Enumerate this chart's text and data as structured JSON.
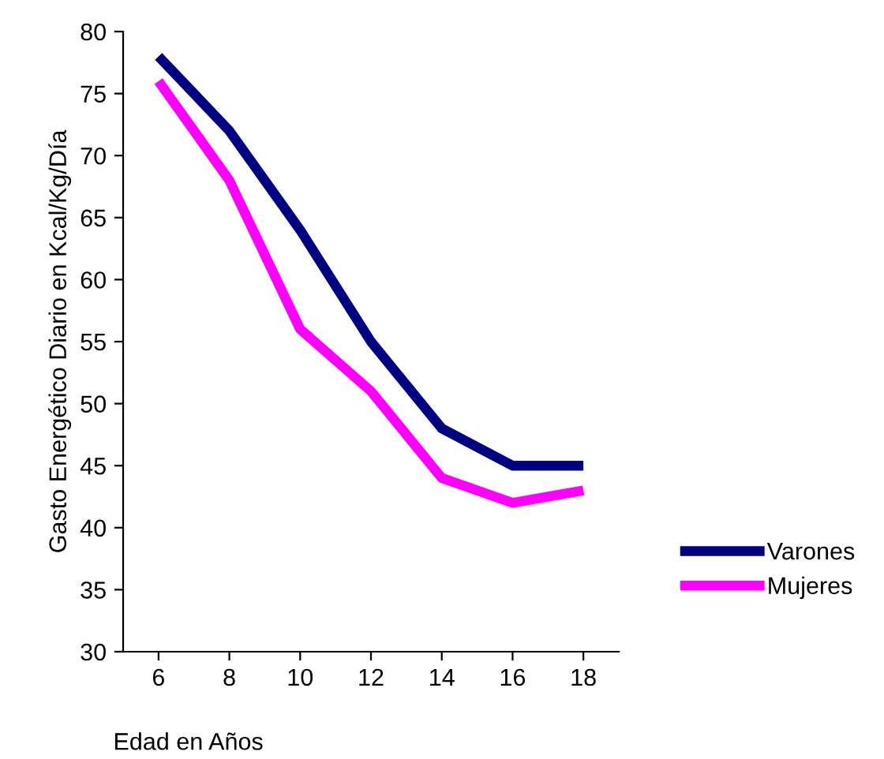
{
  "chart_data": {
    "type": "line",
    "xlabel": "Edad en Años",
    "ylabel": "Gasto Energético Diario en Kcal/Kg/Día",
    "x": [
      6,
      8,
      10,
      12,
      14,
      16,
      18
    ],
    "series": [
      {
        "name": "Varones",
        "color": "#000080",
        "values": [
          78,
          72,
          64,
          55,
          48,
          45,
          45
        ]
      },
      {
        "name": "Mujeres",
        "color": "#ff00ff",
        "values": [
          76,
          68,
          56,
          51,
          44,
          42,
          43
        ]
      }
    ],
    "xlim": [
      5,
      19
    ],
    "xticks": [
      6,
      8,
      10,
      12,
      14,
      16,
      18
    ],
    "ylim": [
      30,
      80
    ],
    "yticks": [
      30,
      35,
      40,
      45,
      50,
      55,
      60,
      65,
      70,
      75,
      80
    ],
    "grid": false,
    "legend": "right",
    "marker": "none",
    "line_style": "solid"
  }
}
